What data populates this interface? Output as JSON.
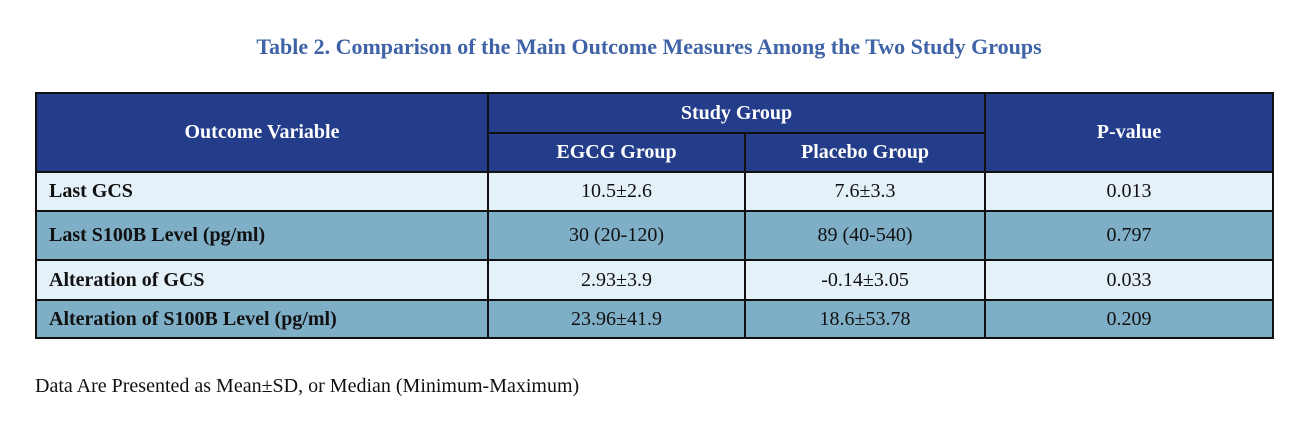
{
  "title": "Table 2. Comparison of the Main Outcome Measures Among the Two Study Groups",
  "table": {
    "headers": {
      "outcome_variable": "Outcome Variable",
      "study_group": "Study Group",
      "egcg_group": "EGCG Group",
      "placebo_group": "Placebo Group",
      "p_value": "P-value"
    },
    "rows": [
      {
        "variable": "Last GCS",
        "egcg": "10.5±2.6",
        "placebo": "7.6±3.3",
        "p": "0.013"
      },
      {
        "variable": "Last S100B Level (pg/ml)",
        "egcg": "30 (20-120)",
        "placebo": "89 (40-540)",
        "p": "0.797"
      },
      {
        "variable": "Alteration of GCS",
        "egcg": "2.93±3.9",
        "placebo": "-0.14±3.05",
        "p": "0.033"
      },
      {
        "variable": "Alteration of S100B Level (pg/ml)",
        "egcg": "23.96±41.9",
        "placebo": "18.6±53.78",
        "p": "0.209"
      }
    ]
  },
  "footnote": "Data Are Presented as Mean±SD, or Median (Minimum-Maximum)",
  "colors": {
    "title": "#3f63a6",
    "header_bg": "#233d8a",
    "row_light": "#e4f1f8",
    "row_dark": "#7fafc7"
  }
}
